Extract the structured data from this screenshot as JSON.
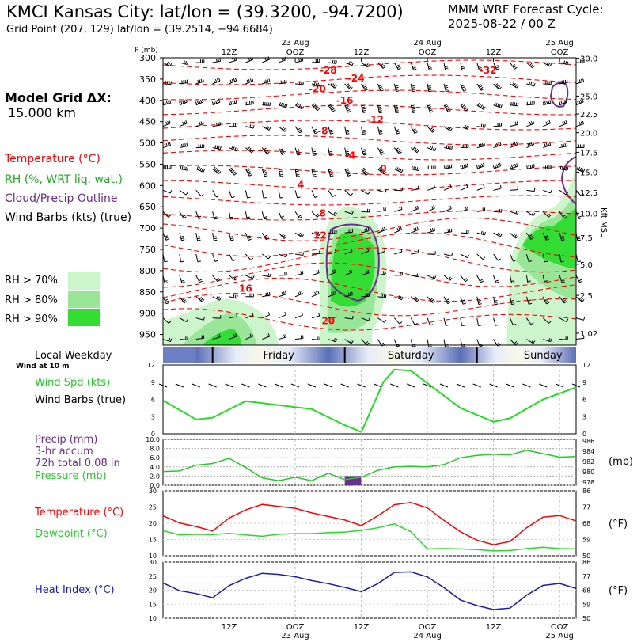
{
  "header": {
    "station_title": "KMCI Kansas City:  lat/lon = (39.3200, -94.7200)",
    "grid_point": "Grid Point (207, 129) lat/lon = (39.2514, −94.6684)",
    "model": "MMM WRF Forecast Cycle:",
    "cycle": "2025-08-22 / 00  Z",
    "grid_spacing_label": "Model Grid ΔX:",
    "grid_spacing_value": "15.000 km"
  },
  "legend": {
    "temperature": "Temperature (°C)",
    "rh": "RH (%, WRT liq. wat.)",
    "cloud": "Cloud/Precip Outline",
    "wind": "Wind Barbs (kts) (true)",
    "rh70": "RH > 70%",
    "rh80": "RH > 80%",
    "rh90": "RH > 90%",
    "kft_msl": "Kft MSL"
  },
  "colors": {
    "temperature": "#ff0000",
    "rh_fill": "#32cd32",
    "rh70": "#ccf5cc",
    "rh80": "#99e699",
    "rh90": "#33dd33",
    "cloud_outline": "#6a2c8f",
    "dewpoint": "#22dd22",
    "heat_index": "#1a1ab3",
    "precip_bar": "#6a2c8f",
    "pressure": "#22cc22",
    "wind_speed": "#22dd22"
  },
  "chart_data": [
    {
      "type": "line",
      "name": "upper-air cross-section",
      "y_title": "P (mb)",
      "pressure_levels": [
        300,
        350,
        400,
        450,
        500,
        550,
        600,
        650,
        700,
        750,
        800,
        850,
        900,
        950
      ],
      "height_ticks_kft": [
        "30.0",
        "25.0",
        "22.5",
        "20.0",
        "17.5",
        "15.0",
        "12.5",
        "10.0",
        "7.5",
        "5.0",
        "2.5",
        "1.02"
      ],
      "height_tick_levels_mb": [
        301,
        390,
        432,
        476,
        522,
        569,
        616,
        665,
        722,
        785,
        858,
        947
      ],
      "time_ticks": [
        "12Z",
        "OOZ",
        "12Z",
        "OOZ",
        "12Z",
        "OOZ"
      ],
      "time_tick_hours": [
        12,
        24,
        36,
        48,
        60,
        72
      ],
      "date_ticks": [
        "23 Aug",
        "24 Aug",
        "25 Aug"
      ],
      "date_tick_hours": [
        24,
        48,
        72
      ],
      "temperature_labels": [
        {
          "text": "-28",
          "hour": 30,
          "mb": 330
        },
        {
          "text": "-32",
          "hour": 59,
          "mb": 330
        },
        {
          "text": "-24",
          "hour": 35,
          "mb": 348
        },
        {
          "text": "-20",
          "hour": 28,
          "mb": 373
        },
        {
          "text": "-16",
          "hour": 33,
          "mb": 400
        },
        {
          "text": "-12",
          "hour": 38.5,
          "mb": 445
        },
        {
          "text": "-8",
          "hour": 29,
          "mb": 472
        },
        {
          "text": "-4",
          "hour": 34,
          "mb": 530
        },
        {
          "text": "0",
          "hour": 40,
          "mb": 560
        },
        {
          "text": "4",
          "hour": 25,
          "mb": 598
        },
        {
          "text": "8",
          "hour": 29,
          "mb": 665
        },
        {
          "text": "12",
          "hour": 28.5,
          "mb": 717
        },
        {
          "text": "16",
          "hour": 15,
          "mb": 842
        },
        {
          "text": "20",
          "hour": 30,
          "mb": 918
        }
      ]
    },
    {
      "type": "line",
      "name": "surface wind speed",
      "y_title": "Wind Spd (kts)",
      "subtitle": "Wind Barbs (true)",
      "top_label": "Local Weekday",
      "wind_note": "Wind at 10 m",
      "days": [
        "Friday",
        "Saturday",
        "Sunday"
      ],
      "hours": [
        0,
        6,
        9,
        15,
        21,
        27,
        33,
        36,
        40,
        42,
        45,
        54,
        60,
        63,
        69,
        75
      ],
      "values": [
        5.8,
        2.5,
        2.8,
        5.7,
        5,
        4.3,
        1.5,
        0.3,
        9,
        11.2,
        11,
        4.5,
        2.1,
        2.7,
        6,
        8.1
      ],
      "ylim": [
        0,
        12
      ],
      "y_ticks": [
        0,
        3,
        6,
        9,
        12
      ]
    },
    {
      "type": "line",
      "name": "precip and pressure",
      "precip_title": "Precip (mm)",
      "precip_sub1": "3-hr accum",
      "precip_sub2": "72h total 0.08 in",
      "pressure_title": "Pressure (mb)",
      "unit_right": "(mb)",
      "precip_ticks": [
        "0.0",
        "2.0",
        "4.0",
        "6.0",
        "8.0",
        "10.0"
      ],
      "pressure_ticks": [
        "978",
        "980",
        "982",
        "984",
        "986"
      ],
      "pressure_hours": [
        0,
        3,
        6,
        9,
        12,
        15,
        18,
        21,
        24,
        27,
        30,
        33,
        36,
        39,
        42,
        45,
        48,
        51,
        54,
        57,
        60,
        63,
        66,
        69,
        72,
        75
      ],
      "pressure_values": [
        980.4,
        980.5,
        981.5,
        981.8,
        982.7,
        981.1,
        979.3,
        978.8,
        979.4,
        978.8,
        980.1,
        979.0,
        979.4,
        980.6,
        981.2,
        981.3,
        981.2,
        981.6,
        982.8,
        983.2,
        983.4,
        983.3,
        984.1,
        983.5,
        982.9,
        983.0
      ],
      "pressure_ylim": [
        978,
        986
      ],
      "precip_bars": [
        {
          "hour_start": 33,
          "hour_end": 36,
          "mm": 2.0
        }
      ],
      "precip_ylim": [
        0,
        10
      ]
    },
    {
      "type": "line",
      "name": "temperature and dewpoint",
      "series": [
        {
          "name": "Temperature (°C)",
          "hours": [
            0,
            3,
            6,
            9,
            12,
            15,
            18,
            21,
            24,
            27,
            30,
            33,
            36,
            39,
            42,
            45,
            48,
            51,
            54,
            57,
            60,
            63,
            66,
            69,
            72,
            75
          ],
          "values": [
            22.3,
            20.1,
            19,
            17.6,
            21.6,
            24.1,
            25.8,
            25.2,
            24.6,
            23.2,
            22.1,
            21,
            19.3,
            22.3,
            25.7,
            26.4,
            24.7,
            20.9,
            17.4,
            14.8,
            13.4,
            14.4,
            18.6,
            21.9,
            22.4,
            20.7
          ]
        },
        {
          "name": "Dewpoint (°C)",
          "hours": [
            0,
            3,
            6,
            9,
            12,
            15,
            18,
            21,
            24,
            27,
            30,
            33,
            36,
            39,
            42,
            45,
            48,
            51,
            54,
            57,
            60,
            63,
            66,
            69,
            72,
            75
          ],
          "values": [
            17.7,
            16.4,
            16.6,
            16.5,
            16.9,
            16.4,
            16,
            16.6,
            16.8,
            16.8,
            17.1,
            17.3,
            17.8,
            18.6,
            19.8,
            17.4,
            12.1,
            12.2,
            12.1,
            11.9,
            11.5,
            11.6,
            12.2,
            12.6,
            12.2,
            12.1
          ]
        }
      ],
      "ylim": [
        10,
        30
      ],
      "y_ticks_c": [
        10,
        15,
        20,
        25,
        30
      ],
      "y_ticks_f": [
        "50",
        "59",
        "68",
        "77",
        "86"
      ],
      "unit_right": "(°F)"
    },
    {
      "type": "line",
      "name": "heat index",
      "series": [
        {
          "name": "Heat Index (°C)",
          "hours": [
            0,
            3,
            6,
            9,
            12,
            15,
            18,
            21,
            24,
            27,
            30,
            33,
            36,
            39,
            42,
            45,
            48,
            51,
            54,
            57,
            60,
            63,
            66,
            69,
            72,
            75
          ],
          "values": [
            22.6,
            19.8,
            18.8,
            17.3,
            21.6,
            24.2,
            26.0,
            25.6,
            24.8,
            23.4,
            22.3,
            21.0,
            19.5,
            22.3,
            26.3,
            26.5,
            24.7,
            20.9,
            16.5,
            14.5,
            13.1,
            13.6,
            18.2,
            21.7,
            22.4,
            20.6
          ]
        }
      ],
      "ylim": [
        10,
        30
      ],
      "y_ticks_c": [
        10,
        15,
        20,
        25,
        30
      ],
      "y_ticks_f": [
        "50",
        "59",
        "68",
        "77",
        "86"
      ],
      "unit_right": "(°F)",
      "time_ticks": [
        "12Z",
        "OOZ",
        "12Z",
        "OOZ",
        "12Z",
        "OOZ"
      ],
      "date_ticks": [
        "23 Aug",
        "24 Aug",
        "25 Aug"
      ]
    }
  ]
}
